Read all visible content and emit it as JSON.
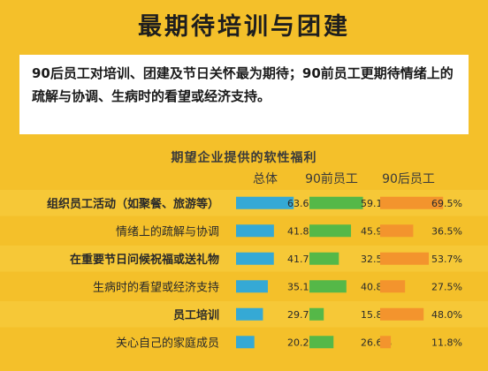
{
  "header": {
    "title": "最期待培训与团建",
    "summary": "90后员工对培训、团建及节日关怀最为期待；90前员工更期待情绪上的疏解与协调、生病时的看望或经济支持。"
  },
  "chart_data": {
    "type": "bar",
    "title": "期望企业提供的软性福利",
    "categories": [
      "组织员工活动（如聚餐、旅游等）",
      "情绪上的疏解与协调",
      "在重要节日问候祝福或送礼物",
      "生病时的看望或经济支持",
      "员工培训",
      "关心自己的家庭成员"
    ],
    "bold_categories": [
      0,
      2,
      4
    ],
    "series": [
      {
        "name": "总体",
        "color": "#35a9d5",
        "values": [
          63.6,
          41.8,
          41.7,
          35.1,
          29.7,
          20.2
        ]
      },
      {
        "name": "90前员工",
        "color": "#55b848",
        "values": [
          59.1,
          45.9,
          32.5,
          40.8,
          15.8,
          26.6
        ]
      },
      {
        "name": "90后员工",
        "color": "#f3942d",
        "values": [
          69.5,
          36.5,
          53.7,
          27.5,
          48.0,
          11.8
        ]
      }
    ],
    "value_suffix": "%",
    "xlim": [
      0,
      100
    ],
    "grid": false,
    "legend": "top"
  }
}
